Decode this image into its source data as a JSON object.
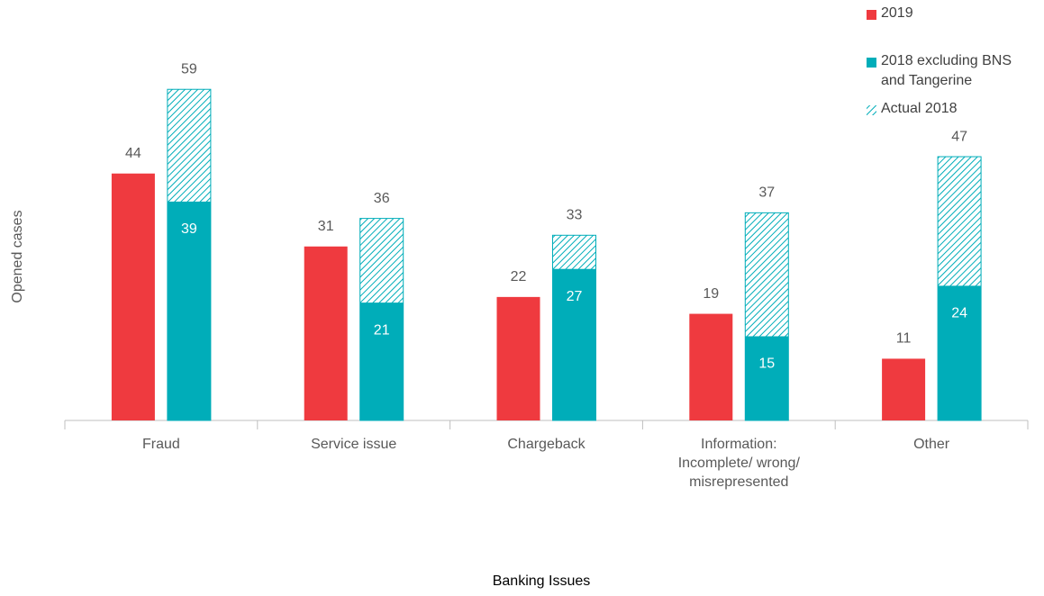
{
  "chart_data": {
    "type": "bar",
    "xlabel": "Banking Issues",
    "ylabel": "Opened cases",
    "categories": [
      "Fraud",
      "Service issue",
      "Chargeback",
      "Information: Incomplete/ wrong/ misrepresented",
      "Other"
    ],
    "series": [
      {
        "name": "2019",
        "color": "#ef3a3f",
        "values": [
          44,
          31,
          22,
          19,
          11
        ]
      },
      {
        "name": "2018 excluding BNS and Tangerine",
        "color": "#00adb9",
        "values": [
          39,
          21,
          27,
          15,
          24
        ]
      },
      {
        "name": "Actual 2018",
        "color": "#00adb9",
        "pattern": "hatch",
        "values": [
          59,
          36,
          33,
          37,
          47
        ]
      }
    ],
    "ylim": [
      0,
      60
    ],
    "legend": "top-right"
  }
}
